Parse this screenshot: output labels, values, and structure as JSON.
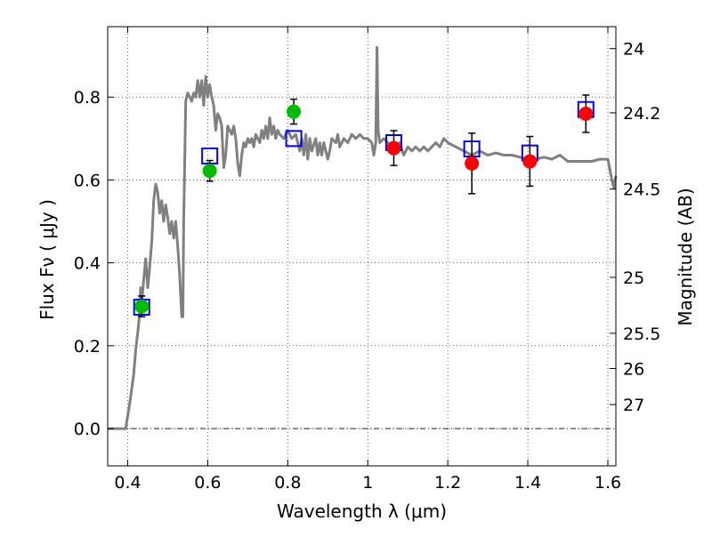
{
  "chart_data": {
    "type": "scatter",
    "title": "",
    "xlabel": "Wavelength  λ (μm)",
    "ylabel": "Flux  Fν  ( μJy )",
    "y2label": "Magnitude (AB)",
    "xlim": [
      0.35,
      1.62
    ],
    "ylim": [
      -0.09,
      0.97
    ],
    "grid": true,
    "x_ticks": [
      0.4,
      0.6,
      0.8,
      1.0,
      1.2,
      1.4,
      1.6
    ],
    "x_tick_labels": [
      "0.4",
      "0.6",
      "0.8",
      "1",
      "1.2",
      "1.4",
      "1.6"
    ],
    "y_ticks": [
      0.0,
      0.2,
      0.4,
      0.6,
      0.8
    ],
    "y_tick_labels": [
      "0.0",
      "0.2",
      "0.4",
      "0.6",
      "0.8"
    ],
    "y2_ticks": [
      {
        "label": "24",
        "flux": 0.917
      },
      {
        "label": "24.2",
        "flux": 0.762
      },
      {
        "label": "24.5",
        "flux": 0.578
      },
      {
        "label": "25",
        "flux": 0.365
      },
      {
        "label": "25.5",
        "flux": 0.23
      },
      {
        "label": "26",
        "flux": 0.145
      },
      {
        "label": "27",
        "flux": 0.058
      }
    ],
    "model_sed": {
      "color": "#808080",
      "points": [
        [
          0.35,
          0.0
        ],
        [
          0.36,
          0.0
        ],
        [
          0.37,
          0.0
        ],
        [
          0.38,
          0.0
        ],
        [
          0.395,
          0.0
        ],
        [
          0.405,
          0.06
        ],
        [
          0.415,
          0.13
        ],
        [
          0.42,
          0.19
        ],
        [
          0.425,
          0.23
        ],
        [
          0.43,
          0.28
        ],
        [
          0.432,
          0.34
        ],
        [
          0.435,
          0.3
        ],
        [
          0.44,
          0.36
        ],
        [
          0.445,
          0.41
        ],
        [
          0.45,
          0.34
        ],
        [
          0.455,
          0.39
        ],
        [
          0.46,
          0.45
        ],
        [
          0.465,
          0.55
        ],
        [
          0.47,
          0.59
        ],
        [
          0.475,
          0.57
        ],
        [
          0.48,
          0.52
        ],
        [
          0.485,
          0.55
        ],
        [
          0.49,
          0.5
        ],
        [
          0.495,
          0.54
        ],
        [
          0.5,
          0.51
        ],
        [
          0.505,
          0.47
        ],
        [
          0.51,
          0.5
        ],
        [
          0.515,
          0.46
        ],
        [
          0.52,
          0.5
        ],
        [
          0.525,
          0.44
        ],
        [
          0.53,
          0.37
        ],
        [
          0.535,
          0.27
        ],
        [
          0.538,
          0.27
        ],
        [
          0.54,
          0.5
        ],
        [
          0.545,
          0.79
        ],
        [
          0.55,
          0.81
        ],
        [
          0.555,
          0.8
        ],
        [
          0.56,
          0.79
        ],
        [
          0.565,
          0.81
        ],
        [
          0.57,
          0.8
        ],
        [
          0.575,
          0.84
        ],
        [
          0.58,
          0.8
        ],
        [
          0.585,
          0.84
        ],
        [
          0.59,
          0.78
        ],
        [
          0.595,
          0.85
        ],
        [
          0.6,
          0.8
        ],
        [
          0.605,
          0.83
        ],
        [
          0.61,
          0.8
        ],
        [
          0.615,
          0.78
        ],
        [
          0.62,
          0.72
        ],
        [
          0.625,
          0.76
        ],
        [
          0.63,
          0.75
        ],
        [
          0.635,
          0.73
        ],
        [
          0.64,
          0.63
        ],
        [
          0.645,
          0.66
        ],
        [
          0.65,
          0.73
        ],
        [
          0.655,
          0.72
        ],
        [
          0.66,
          0.71
        ],
        [
          0.665,
          0.73
        ],
        [
          0.67,
          0.7
        ],
        [
          0.675,
          0.64
        ],
        [
          0.68,
          0.61
        ],
        [
          0.685,
          0.66
        ],
        [
          0.69,
          0.69
        ],
        [
          0.695,
          0.68
        ],
        [
          0.7,
          0.7
        ],
        [
          0.705,
          0.69
        ],
        [
          0.71,
          0.7
        ],
        [
          0.715,
          0.68
        ],
        [
          0.72,
          0.71
        ],
        [
          0.73,
          0.69
        ],
        [
          0.735,
          0.72
        ],
        [
          0.74,
          0.7
        ],
        [
          0.745,
          0.73
        ],
        [
          0.75,
          0.7
        ],
        [
          0.755,
          0.75
        ],
        [
          0.76,
          0.71
        ],
        [
          0.765,
          0.73
        ],
        [
          0.77,
          0.7
        ],
        [
          0.775,
          0.72
        ],
        [
          0.78,
          0.71
        ],
        [
          0.79,
          0.7
        ],
        [
          0.8,
          0.72
        ],
        [
          0.81,
          0.7
        ],
        [
          0.82,
          0.71
        ],
        [
          0.83,
          0.67
        ],
        [
          0.835,
          0.7
        ],
        [
          0.84,
          0.66
        ],
        [
          0.845,
          0.71
        ],
        [
          0.85,
          0.65
        ],
        [
          0.855,
          0.7
        ],
        [
          0.86,
          0.67
        ],
        [
          0.87,
          0.7
        ],
        [
          0.875,
          0.66
        ],
        [
          0.88,
          0.69
        ],
        [
          0.885,
          0.66
        ],
        [
          0.89,
          0.69
        ],
        [
          0.9,
          0.65
        ],
        [
          0.905,
          0.67
        ],
        [
          0.91,
          0.7
        ],
        [
          0.92,
          0.69
        ],
        [
          0.925,
          0.71
        ],
        [
          0.93,
          0.68
        ],
        [
          0.94,
          0.7
        ],
        [
          0.95,
          0.69
        ],
        [
          0.96,
          0.71
        ],
        [
          0.97,
          0.7
        ],
        [
          0.98,
          0.71
        ],
        [
          0.99,
          0.7
        ],
        [
          1.0,
          0.7
        ],
        [
          1.01,
          0.69
        ],
        [
          1.015,
          0.66
        ],
        [
          1.02,
          0.69
        ],
        [
          1.023,
          0.92
        ],
        [
          1.026,
          0.72
        ],
        [
          1.03,
          0.69
        ],
        [
          1.04,
          0.7
        ],
        [
          1.05,
          0.69
        ],
        [
          1.06,
          0.68
        ],
        [
          1.08,
          0.69
        ],
        [
          1.09,
          0.66
        ],
        [
          1.1,
          0.68
        ],
        [
          1.11,
          0.67
        ],
        [
          1.12,
          0.68
        ],
        [
          1.13,
          0.67
        ],
        [
          1.14,
          0.68
        ],
        [
          1.15,
          0.67
        ],
        [
          1.16,
          0.68
        ],
        [
          1.17,
          0.69
        ],
        [
          1.18,
          0.68
        ],
        [
          1.19,
          0.7
        ],
        [
          1.2,
          0.69
        ],
        [
          1.22,
          0.68
        ],
        [
          1.24,
          0.67
        ],
        [
          1.26,
          0.66
        ],
        [
          1.28,
          0.67
        ],
        [
          1.3,
          0.66
        ],
        [
          1.32,
          0.665
        ],
        [
          1.34,
          0.66
        ],
        [
          1.36,
          0.66
        ],
        [
          1.38,
          0.655
        ],
        [
          1.4,
          0.65
        ],
        [
          1.42,
          0.65
        ],
        [
          1.44,
          0.655
        ],
        [
          1.46,
          0.65
        ],
        [
          1.48,
          0.66
        ],
        [
          1.5,
          0.645
        ],
        [
          1.52,
          0.645
        ],
        [
          1.54,
          0.645
        ],
        [
          1.56,
          0.645
        ],
        [
          1.58,
          0.65
        ],
        [
          1.6,
          0.65
        ],
        [
          1.61,
          0.6
        ],
        [
          1.615,
          0.58
        ],
        [
          1.62,
          0.61
        ]
      ]
    },
    "model_bands": {
      "color": "#0000ff",
      "points": [
        [
          0.435,
          0.293
        ],
        [
          0.605,
          0.658
        ],
        [
          0.815,
          0.7
        ],
        [
          1.065,
          0.69
        ],
        [
          1.26,
          0.675
        ],
        [
          1.405,
          0.665
        ],
        [
          1.545,
          0.77
        ]
      ]
    },
    "observed_optical": {
      "color": "#00bb00",
      "points": [
        {
          "x": 0.435,
          "y": 0.295,
          "err": 0.025
        },
        {
          "x": 0.605,
          "y": 0.622,
          "err": 0.025
        },
        {
          "x": 0.815,
          "y": 0.765,
          "err": 0.03
        }
      ]
    },
    "observed_nir": {
      "color": "#ff0000",
      "points": [
        {
          "x": 1.065,
          "y": 0.677,
          "err": 0.042
        },
        {
          "x": 1.26,
          "y": 0.64,
          "err": 0.073
        },
        {
          "x": 1.405,
          "y": 0.645,
          "err": 0.06
        },
        {
          "x": 1.545,
          "y": 0.76,
          "err": 0.045
        }
      ]
    }
  }
}
